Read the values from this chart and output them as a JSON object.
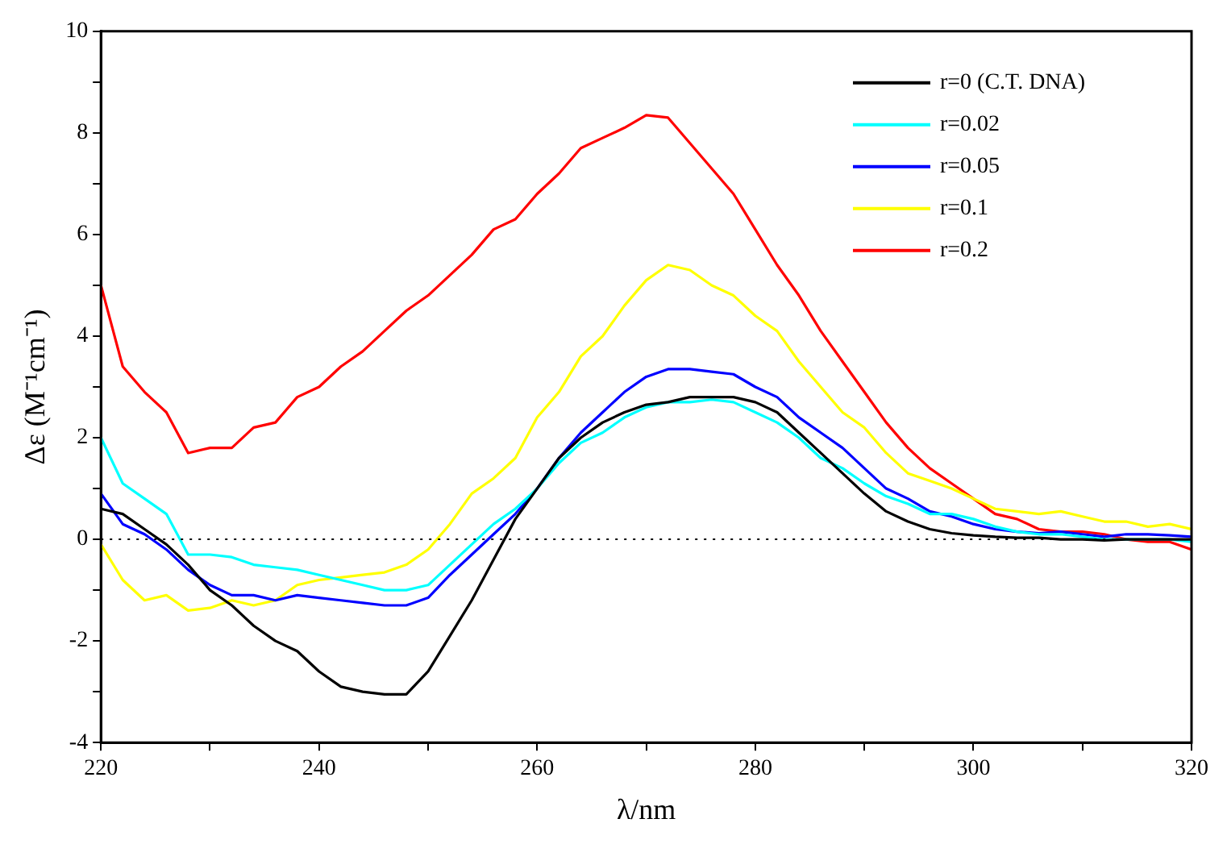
{
  "chart_data": {
    "type": "line",
    "xlabel": "λ/nm",
    "ylabel": "Δε (M⁻¹cm⁻¹)",
    "x": [
      220,
      222,
      224,
      226,
      228,
      230,
      232,
      234,
      236,
      238,
      240,
      242,
      244,
      246,
      248,
      250,
      252,
      254,
      256,
      258,
      260,
      262,
      264,
      266,
      268,
      270,
      272,
      274,
      276,
      278,
      280,
      282,
      284,
      286,
      288,
      290,
      292,
      294,
      296,
      298,
      300,
      302,
      304,
      306,
      308,
      310,
      312,
      314,
      316,
      318,
      320
    ],
    "series": [
      {
        "name": "r=0 (C.T. DNA)",
        "color": "#000000",
        "values": [
          0.6,
          0.5,
          0.2,
          -0.1,
          -0.5,
          -1.0,
          -1.3,
          -1.7,
          -2.0,
          -2.2,
          -2.6,
          -2.9,
          -3.0,
          -3.05,
          -3.05,
          -2.6,
          -1.9,
          -1.2,
          -0.4,
          0.4,
          1.0,
          1.6,
          2.0,
          2.3,
          2.5,
          2.65,
          2.7,
          2.8,
          2.8,
          2.8,
          2.7,
          2.5,
          2.1,
          1.7,
          1.3,
          0.9,
          0.55,
          0.35,
          0.2,
          0.12,
          0.08,
          0.05,
          0.03,
          0.03,
          0.0,
          0.0,
          -0.02,
          0.0,
          0.0,
          0.0,
          0.0
        ]
      },
      {
        "name": "r=0.02",
        "color": "#00ffff",
        "values": [
          2.0,
          1.1,
          0.8,
          0.5,
          -0.3,
          -0.3,
          -0.35,
          -0.5,
          -0.55,
          -0.6,
          -0.7,
          -0.8,
          -0.9,
          -1.0,
          -1.0,
          -0.9,
          -0.5,
          -0.1,
          0.3,
          0.6,
          1.0,
          1.5,
          1.9,
          2.1,
          2.4,
          2.6,
          2.7,
          2.7,
          2.75,
          2.7,
          2.5,
          2.3,
          2.0,
          1.6,
          1.4,
          1.1,
          0.85,
          0.7,
          0.5,
          0.5,
          0.4,
          0.25,
          0.15,
          0.1,
          0.1,
          0.05,
          0.0,
          0.0,
          0.0,
          0.0,
          -0.05
        ]
      },
      {
        "name": "r=0.05",
        "color": "#0000ff",
        "values": [
          0.9,
          0.3,
          0.1,
          -0.2,
          -0.6,
          -0.9,
          -1.1,
          -1.1,
          -1.2,
          -1.1,
          -1.15,
          -1.2,
          -1.25,
          -1.3,
          -1.3,
          -1.15,
          -0.7,
          -0.3,
          0.1,
          0.5,
          1.0,
          1.6,
          2.1,
          2.5,
          2.9,
          3.2,
          3.35,
          3.35,
          3.3,
          3.25,
          3.0,
          2.8,
          2.4,
          2.1,
          1.8,
          1.4,
          1.0,
          0.8,
          0.55,
          0.45,
          0.3,
          0.2,
          0.15,
          0.12,
          0.15,
          0.1,
          0.05,
          0.1,
          0.1,
          0.08,
          0.05
        ]
      },
      {
        "name": "r=0.1",
        "color": "#ffff00",
        "values": [
          -0.1,
          -0.8,
          -1.2,
          -1.1,
          -1.4,
          -1.35,
          -1.2,
          -1.3,
          -1.2,
          -0.9,
          -0.8,
          -0.75,
          -0.7,
          -0.65,
          -0.5,
          -0.2,
          0.3,
          0.9,
          1.2,
          1.6,
          2.4,
          2.9,
          3.6,
          4.0,
          4.6,
          5.1,
          5.4,
          5.3,
          5.0,
          4.8,
          4.4,
          4.1,
          3.5,
          3.0,
          2.5,
          2.2,
          1.7,
          1.3,
          1.15,
          1.0,
          0.8,
          0.6,
          0.55,
          0.5,
          0.55,
          0.45,
          0.35,
          0.35,
          0.25,
          0.3,
          0.2
        ]
      },
      {
        "name": "r=0.2",
        "color": "#ff0000",
        "values": [
          5.0,
          3.4,
          2.9,
          2.5,
          1.7,
          1.8,
          1.8,
          2.2,
          2.3,
          2.8,
          3.0,
          3.4,
          3.7,
          4.1,
          4.5,
          4.8,
          5.2,
          5.6,
          6.1,
          6.3,
          6.8,
          7.2,
          7.7,
          7.9,
          8.1,
          8.35,
          8.3,
          7.8,
          7.3,
          6.8,
          6.1,
          5.4,
          4.8,
          4.1,
          3.5,
          2.9,
          2.3,
          1.8,
          1.4,
          1.1,
          0.8,
          0.5,
          0.4,
          0.2,
          0.15,
          0.15,
          0.1,
          0.0,
          -0.05,
          -0.05,
          -0.2
        ]
      }
    ],
    "xlim": [
      220,
      320
    ],
    "xticks": [
      220,
      {
        "value": 230,
        "label": null
      },
      240,
      {
        "value": 250,
        "label": null
      },
      260,
      {
        "value": 270,
        "label": null
      },
      280,
      {
        "value": 290,
        "label": null
      },
      300,
      {
        "value": 310,
        "label": null
      },
      320
    ],
    "ylim": [
      -4,
      10
    ],
    "yticks": [
      -4,
      {
        "value": -3,
        "label": null
      },
      -2,
      {
        "value": -1,
        "label": null
      },
      0,
      {
        "value": 1,
        "label": null
      },
      2,
      {
        "value": 3,
        "label": null
      },
      4,
      {
        "value": 5,
        "label": null
      },
      6,
      {
        "value": 7,
        "label": null
      },
      8,
      {
        "value": 9,
        "label": null
      },
      10
    ],
    "ref_lines": [
      {
        "axis": "y",
        "value": 0,
        "color": "#000000",
        "line_style": "dotted"
      }
    ],
    "legend": "top right",
    "grid": false,
    "marker": "none",
    "line_style": "solid"
  }
}
